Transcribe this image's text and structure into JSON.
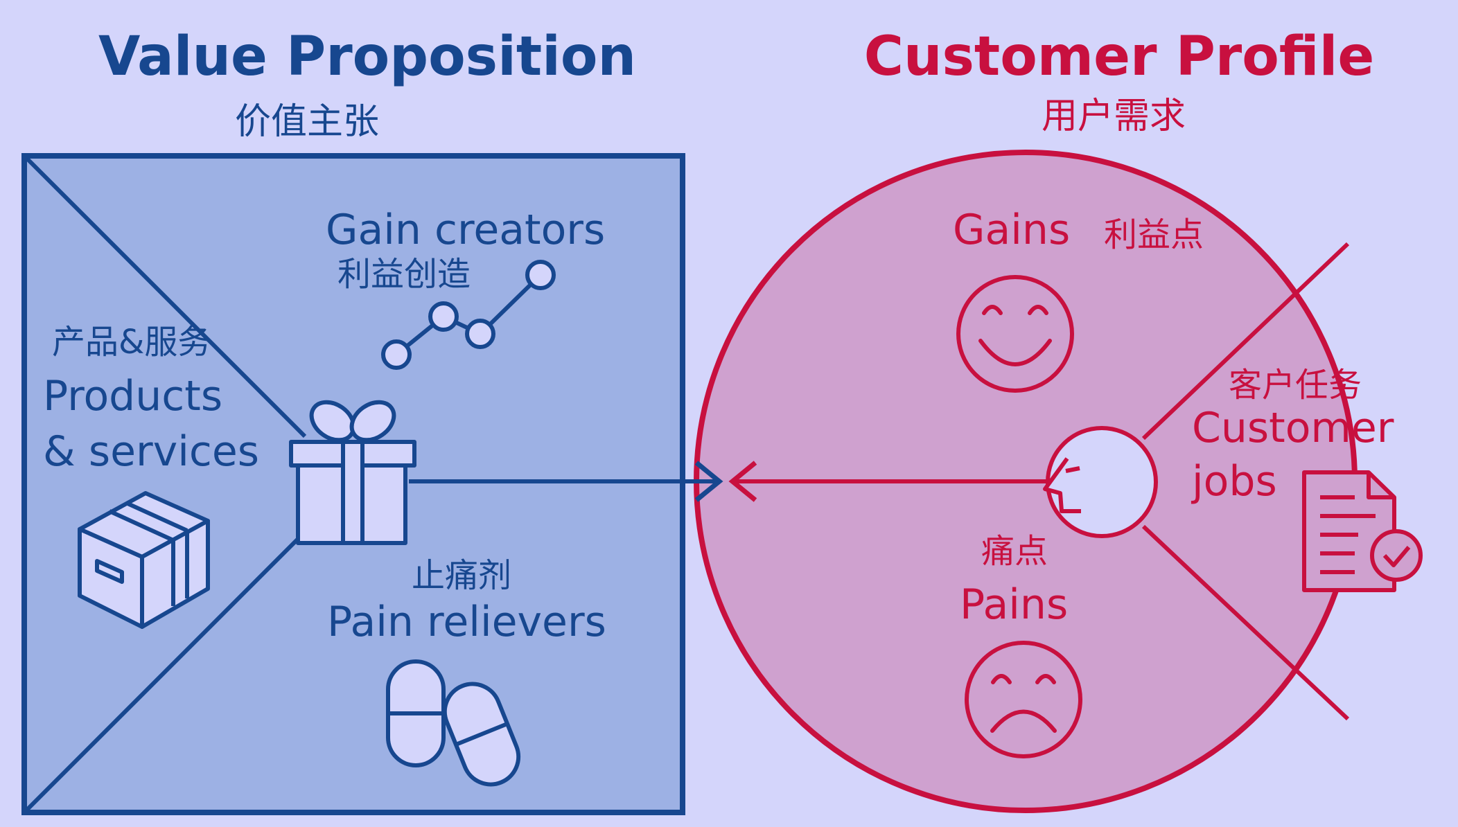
{
  "colors": {
    "background": "#d4d5fb",
    "value_blue": "#17478f",
    "value_fill": "#9db1e4",
    "customer_red": "#c8103f",
    "customer_fill": "#cfa1cf"
  },
  "value_proposition": {
    "title": "Value Proposition",
    "subtitle": "价值主张",
    "products_services": {
      "label_cn": "产品&服务",
      "label_line1": "Products",
      "label_line2": "& services",
      "icons": [
        "gift-icon",
        "box-icon"
      ]
    },
    "gain_creators": {
      "label": "Gain creators",
      "label_cn": "利益创造",
      "icon": "trend-line-icon"
    },
    "pain_relievers": {
      "label_cn": "止痛剂",
      "label": "Pain relievers",
      "icon": "pills-icon"
    }
  },
  "customer_profile": {
    "title": "Customer Profile",
    "subtitle": "用户需求",
    "gains": {
      "label": "Gains",
      "label_cn": "利益点",
      "icon": "smiley-face-icon"
    },
    "customer_jobs": {
      "label_cn": "客户任务",
      "label_line1": "Customer",
      "label_line2": "jobs",
      "icon": "document-check-icon"
    },
    "pains": {
      "label_cn": "痛点",
      "label": "Pains",
      "icon": "sad-face-icon"
    },
    "center_icon": "customer-head-icon"
  },
  "connector": {
    "icon": "double-arrow-icon"
  }
}
